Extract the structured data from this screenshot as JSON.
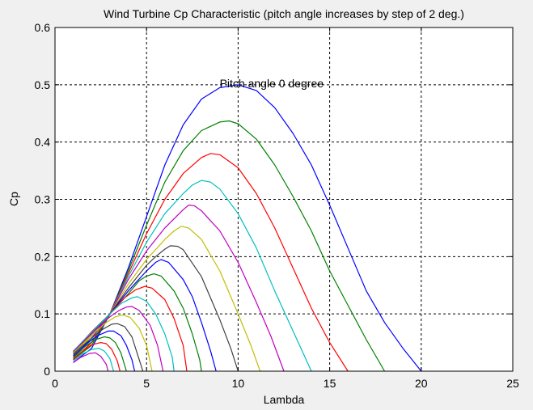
{
  "chart_data": {
    "type": "line",
    "title": "Wind Turbine Cp Characteristic (pitch angle increases by step of 2 deg.)",
    "xlabel": "Lambda",
    "ylabel": "Cp",
    "xlim": [
      0,
      25
    ],
    "ylim": [
      0,
      0.6
    ],
    "xticks": [
      0,
      5,
      10,
      15,
      20,
      25
    ],
    "yticks": [
      0,
      0.1,
      0.2,
      0.3,
      0.4,
      0.5,
      0.6
    ],
    "xtick_labels": [
      "0",
      "5",
      "10",
      "15",
      "20",
      "25"
    ],
    "ytick_labels": [
      "0",
      "0.1",
      "0.2",
      "0.3",
      "0.4",
      "0.5",
      "0.6"
    ],
    "grid": true,
    "grid_style": "dashed",
    "annotation": {
      "text": "Pitch angle 0 degree",
      "x": 9.7,
      "y": 0.5
    },
    "series": [
      {
        "color": "#0000ff",
        "points": [
          [
            1,
            0.015
          ],
          [
            2,
            0.04
          ],
          [
            3,
            0.1
          ],
          [
            4,
            0.18
          ],
          [
            5,
            0.27
          ],
          [
            6,
            0.36
          ],
          [
            7,
            0.43
          ],
          [
            8,
            0.475
          ],
          [
            9,
            0.495
          ],
          [
            10,
            0.5
          ],
          [
            11,
            0.49
          ],
          [
            12,
            0.46
          ],
          [
            13,
            0.415
          ],
          [
            14,
            0.36
          ],
          [
            15,
            0.29
          ],
          [
            16,
            0.215
          ],
          [
            17,
            0.14
          ],
          [
            18,
            0.085
          ],
          [
            19,
            0.04
          ],
          [
            20,
            0.0
          ]
        ]
      },
      {
        "color": "#008000",
        "points": [
          [
            1,
            0.02
          ],
          [
            2,
            0.045
          ],
          [
            3,
            0.1
          ],
          [
            4,
            0.175
          ],
          [
            5,
            0.255
          ],
          [
            6,
            0.33
          ],
          [
            7,
            0.385
          ],
          [
            8,
            0.42
          ],
          [
            9,
            0.435
          ],
          [
            9.5,
            0.437
          ],
          [
            10,
            0.432
          ],
          [
            11,
            0.405
          ],
          [
            12,
            0.36
          ],
          [
            13,
            0.305
          ],
          [
            14,
            0.245
          ],
          [
            15,
            0.175
          ],
          [
            16,
            0.115
          ],
          [
            17,
            0.055
          ],
          [
            18,
            0.0
          ]
        ]
      },
      {
        "color": "#ff0000",
        "points": [
          [
            1,
            0.02
          ],
          [
            2,
            0.05
          ],
          [
            3,
            0.1
          ],
          [
            4,
            0.17
          ],
          [
            5,
            0.24
          ],
          [
            6,
            0.3
          ],
          [
            7,
            0.345
          ],
          [
            8,
            0.373
          ],
          [
            8.5,
            0.38
          ],
          [
            9,
            0.378
          ],
          [
            10,
            0.355
          ],
          [
            11,
            0.31
          ],
          [
            12,
            0.25
          ],
          [
            13,
            0.18
          ],
          [
            14,
            0.11
          ],
          [
            15,
            0.05
          ],
          [
            16,
            0.0
          ]
        ]
      },
      {
        "color": "#00bfbf",
        "points": [
          [
            1,
            0.022
          ],
          [
            2,
            0.055
          ],
          [
            3,
            0.1
          ],
          [
            4,
            0.165
          ],
          [
            5,
            0.225
          ],
          [
            6,
            0.275
          ],
          [
            7,
            0.31
          ],
          [
            7.5,
            0.325
          ],
          [
            8,
            0.333
          ],
          [
            8.5,
            0.33
          ],
          [
            9,
            0.318
          ],
          [
            10,
            0.275
          ],
          [
            11,
            0.215
          ],
          [
            12,
            0.14
          ],
          [
            13,
            0.07
          ],
          [
            14,
            0.0
          ]
        ]
      },
      {
        "color": "#bf00bf",
        "points": [
          [
            1,
            0.025
          ],
          [
            2,
            0.058
          ],
          [
            3,
            0.1
          ],
          [
            4,
            0.16
          ],
          [
            5,
            0.21
          ],
          [
            6,
            0.25
          ],
          [
            7,
            0.282
          ],
          [
            7.3,
            0.29
          ],
          [
            7.6,
            0.289
          ],
          [
            8,
            0.28
          ],
          [
            9,
            0.245
          ],
          [
            10,
            0.19
          ],
          [
            11,
            0.12
          ],
          [
            11.8,
            0.06
          ],
          [
            12.5,
            0.0
          ]
        ]
      },
      {
        "color": "#bfbf00",
        "points": [
          [
            1,
            0.028
          ],
          [
            2,
            0.062
          ],
          [
            3,
            0.1
          ],
          [
            4,
            0.152
          ],
          [
            5,
            0.195
          ],
          [
            6,
            0.23
          ],
          [
            6.5,
            0.245
          ],
          [
            6.9,
            0.253
          ],
          [
            7.3,
            0.25
          ],
          [
            8,
            0.23
          ],
          [
            9,
            0.175
          ],
          [
            10,
            0.1
          ],
          [
            10.7,
            0.045
          ],
          [
            11.2,
            0.0
          ]
        ]
      },
      {
        "color": "#404040",
        "points": [
          [
            1,
            0.03
          ],
          [
            2,
            0.065
          ],
          [
            3,
            0.1
          ],
          [
            4,
            0.145
          ],
          [
            5,
            0.185
          ],
          [
            5.5,
            0.2
          ],
          [
            6,
            0.213
          ],
          [
            6.3,
            0.219
          ],
          [
            6.7,
            0.218
          ],
          [
            7,
            0.212
          ],
          [
            8,
            0.165
          ],
          [
            9,
            0.09
          ],
          [
            9.6,
            0.04
          ],
          [
            10,
            0.0
          ]
        ]
      },
      {
        "color": "#0000ff",
        "points": [
          [
            1,
            0.032
          ],
          [
            2,
            0.067
          ],
          [
            3,
            0.1
          ],
          [
            4,
            0.14
          ],
          [
            5,
            0.175
          ],
          [
            5.5,
            0.19
          ],
          [
            5.8,
            0.195
          ],
          [
            6.2,
            0.19
          ],
          [
            7,
            0.16
          ],
          [
            7.5,
            0.13
          ],
          [
            8,
            0.085
          ],
          [
            8.5,
            0.035
          ],
          [
            8.8,
            0.0
          ]
        ]
      },
      {
        "color": "#008000",
        "points": [
          [
            1,
            0.033
          ],
          [
            2,
            0.068
          ],
          [
            3,
            0.1
          ],
          [
            4,
            0.135
          ],
          [
            4.6,
            0.158
          ],
          [
            5,
            0.166
          ],
          [
            5.4,
            0.17
          ],
          [
            5.8,
            0.166
          ],
          [
            6.5,
            0.14
          ],
          [
            7,
            0.11
          ],
          [
            7.5,
            0.065
          ],
          [
            7.9,
            0.02
          ],
          [
            8,
            0.0
          ]
        ]
      },
      {
        "color": "#ff0000",
        "points": [
          [
            1,
            0.034
          ],
          [
            2,
            0.069
          ],
          [
            3,
            0.1
          ],
          [
            3.8,
            0.128
          ],
          [
            4.4,
            0.142
          ],
          [
            4.9,
            0.148
          ],
          [
            5.3,
            0.145
          ],
          [
            6,
            0.125
          ],
          [
            6.5,
            0.092
          ],
          [
            7,
            0.045
          ],
          [
            7.2,
            0.0
          ]
        ]
      },
      {
        "color": "#00bfbf",
        "points": [
          [
            1,
            0.035
          ],
          [
            2,
            0.068
          ],
          [
            3,
            0.1
          ],
          [
            3.6,
            0.118
          ],
          [
            4.2,
            0.128
          ],
          [
            4.5,
            0.13
          ],
          [
            5,
            0.122
          ],
          [
            5.5,
            0.1
          ],
          [
            6,
            0.065
          ],
          [
            6.4,
            0.025
          ],
          [
            6.5,
            0.0
          ]
        ]
      },
      {
        "color": "#bf00bf",
        "points": [
          [
            1,
            0.034
          ],
          [
            2,
            0.066
          ],
          [
            3,
            0.095
          ],
          [
            3.5,
            0.106
          ],
          [
            3.9,
            0.112
          ],
          [
            4.2,
            0.113
          ],
          [
            4.6,
            0.106
          ],
          [
            5.2,
            0.08
          ],
          [
            5.6,
            0.045
          ],
          [
            5.9,
            0.0
          ]
        ]
      },
      {
        "color": "#bfbf00",
        "points": [
          [
            1,
            0.032
          ],
          [
            2,
            0.063
          ],
          [
            2.8,
            0.085
          ],
          [
            3.3,
            0.095
          ],
          [
            3.7,
            0.098
          ],
          [
            4.1,
            0.094
          ],
          [
            4.6,
            0.075
          ],
          [
            5.0,
            0.045
          ],
          [
            5.3,
            0.0
          ]
        ]
      },
      {
        "color": "#404040",
        "points": [
          [
            1,
            0.03
          ],
          [
            2,
            0.058
          ],
          [
            2.6,
            0.073
          ],
          [
            3.1,
            0.082
          ],
          [
            3.4,
            0.083
          ],
          [
            3.8,
            0.078
          ],
          [
            4.2,
            0.06
          ],
          [
            4.5,
            0.03
          ],
          [
            4.8,
            0.0
          ]
        ]
      },
      {
        "color": "#0000ff",
        "points": [
          [
            1,
            0.027
          ],
          [
            1.8,
            0.05
          ],
          [
            2.4,
            0.063
          ],
          [
            2.9,
            0.07
          ],
          [
            3.2,
            0.07
          ],
          [
            3.6,
            0.062
          ],
          [
            3.9,
            0.045
          ],
          [
            4.2,
            0.02
          ],
          [
            4.35,
            0.0
          ]
        ]
      },
      {
        "color": "#008000",
        "points": [
          [
            1,
            0.024
          ],
          [
            1.6,
            0.042
          ],
          [
            2.2,
            0.055
          ],
          [
            2.7,
            0.06
          ],
          [
            3.0,
            0.058
          ],
          [
            3.3,
            0.05
          ],
          [
            3.6,
            0.032
          ],
          [
            3.9,
            0.0
          ]
        ]
      },
      {
        "color": "#ff0000",
        "points": [
          [
            1,
            0.021
          ],
          [
            1.5,
            0.035
          ],
          [
            2.0,
            0.046
          ],
          [
            2.5,
            0.05
          ],
          [
            2.8,
            0.048
          ],
          [
            3.1,
            0.038
          ],
          [
            3.4,
            0.018
          ],
          [
            3.55,
            0.0
          ]
        ]
      },
      {
        "color": "#00bfbf",
        "points": [
          [
            1,
            0.018
          ],
          [
            1.5,
            0.03
          ],
          [
            2.0,
            0.038
          ],
          [
            2.4,
            0.04
          ],
          [
            2.7,
            0.035
          ],
          [
            3.0,
            0.022
          ],
          [
            3.2,
            0.0
          ]
        ]
      },
      {
        "color": "#bf00bf",
        "points": [
          [
            1,
            0.015
          ],
          [
            1.4,
            0.024
          ],
          [
            1.9,
            0.031
          ],
          [
            2.2,
            0.032
          ],
          [
            2.5,
            0.026
          ],
          [
            2.8,
            0.012
          ],
          [
            2.9,
            0.0
          ]
        ]
      }
    ]
  }
}
